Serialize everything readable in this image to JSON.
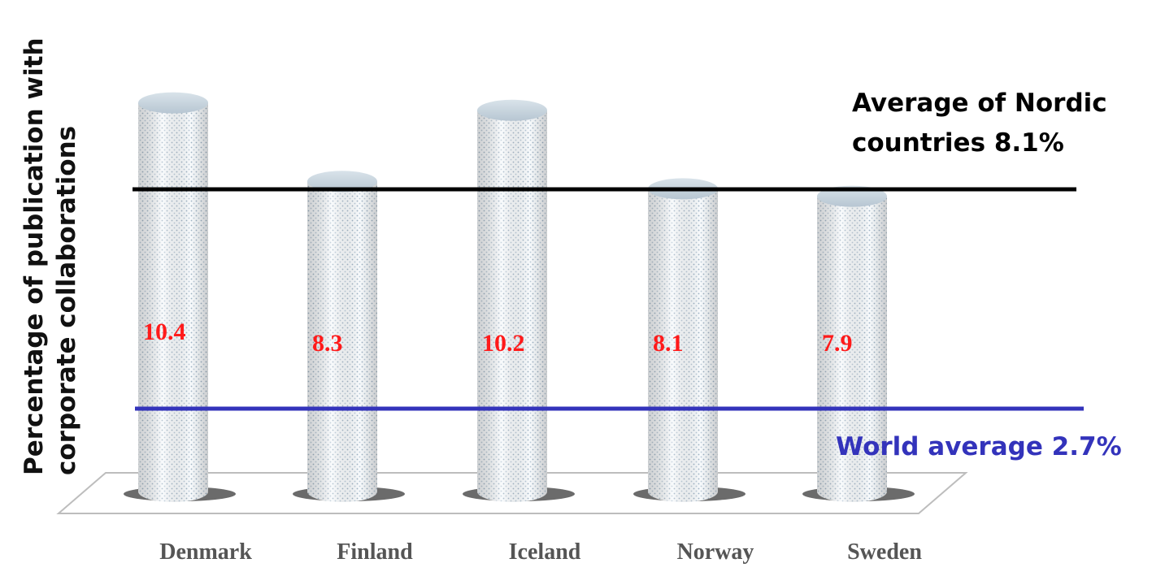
{
  "chart_data": {
    "type": "bar",
    "ylabel": [
      "Percentage of publication with",
      "corporate collaborations"
    ],
    "categories": [
      "Denmark",
      "Finland",
      "Iceland",
      "Norway",
      "Sweden"
    ],
    "values": [
      10.4,
      8.3,
      10.2,
      8.1,
      7.9
    ],
    "value_labels": [
      "10.4",
      "8.3",
      "10.2",
      "8.1",
      "7.9"
    ],
    "reference_lines": [
      {
        "label": [
          "Average of Nordic",
          "countries 8.1%"
        ],
        "value": 8.1,
        "color": "#000000"
      },
      {
        "label": [
          "World average 2.7%"
        ],
        "value": 2.7,
        "color": "#3333bb"
      }
    ],
    "bar_style": "3d-cylinder",
    "grid": false,
    "legend": "none"
  }
}
